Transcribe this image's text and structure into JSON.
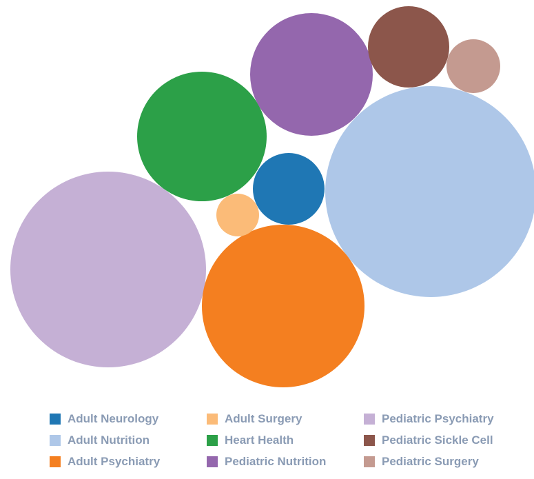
{
  "chart_data": {
    "type": "bubble",
    "title": "",
    "series": [
      {
        "name": "Adult Neurology",
        "color": "#1f77b4"
      },
      {
        "name": "Adult Nutrition",
        "color": "#aec7e8"
      },
      {
        "name": "Adult Psychiatry",
        "color": "#f47f20"
      },
      {
        "name": "Adult Surgery",
        "color": "#fbbb78"
      },
      {
        "name": "Heart Health",
        "color": "#2ca048"
      },
      {
        "name": "Pediatric Nutrition",
        "color": "#9467ad"
      },
      {
        "name": "Pediatric Psychiatry",
        "color": "#c5b0d5"
      },
      {
        "name": "Pediatric Sickle Cell",
        "color": "#8c564b"
      },
      {
        "name": "Pediatric Surgery",
        "color": "#c49a90"
      }
    ],
    "legend_placement": "bottom",
    "legend_columns": 3
  }
}
